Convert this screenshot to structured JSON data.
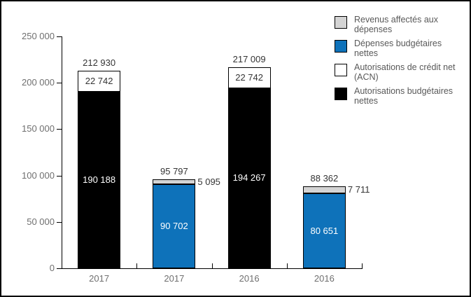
{
  "chart_data": {
    "type": "bar",
    "stacked": true,
    "title": "",
    "grid": false,
    "y_axis": {
      "min": 0,
      "max": 250000,
      "step": 50000,
      "tick_labels": [
        "0",
        "50 000",
        "100 000",
        "150 000",
        "200 000",
        "250 000"
      ]
    },
    "categories": [
      "2017",
      "2017",
      "2016",
      "2016"
    ],
    "series": [
      {
        "name": "Revenus affectés aux dépenses",
        "color": "#D4D4D4",
        "values": [
          0,
          5095,
          0,
          7711
        ]
      },
      {
        "name": "Dépenses budgétaires nettes",
        "color": "#0E72BA",
        "values": [
          0,
          90702,
          0,
          80651
        ]
      },
      {
        "name": "Autorisations de crédit net (ACN)",
        "color": "#FFFFFF",
        "values": [
          22742,
          0,
          22742,
          0
        ]
      },
      {
        "name": "Autorisations budgétaires nettes",
        "color": "#000000",
        "values": [
          190188,
          0,
          194267,
          0
        ]
      }
    ],
    "bars": [
      {
        "category": "2017",
        "total": 212930,
        "total_label": "212 930",
        "segments": [
          {
            "series": "Autorisations budgétaires nettes",
            "value": 190188,
            "label": "190 188",
            "color": "#000000",
            "label_color": "#FFFFFF",
            "label_placement": "inside"
          },
          {
            "series": "Autorisations de crédit net (ACN)",
            "value": 22742,
            "label": "22 742",
            "color": "#FFFFFF",
            "label_color": "#343434",
            "label_placement": "inside"
          }
        ]
      },
      {
        "category": "2017",
        "total": 95797,
        "total_label": "95 797",
        "segments": [
          {
            "series": "Dépenses budgétaires nettes",
            "value": 90702,
            "label": "90 702",
            "color": "#0E72BA",
            "label_color": "#FFFFFF",
            "label_placement": "inside"
          },
          {
            "series": "Revenus affectés aux dépenses",
            "value": 5095,
            "label": "5 095",
            "color": "#D4D4D4",
            "label_color": "#343434",
            "label_placement": "right"
          }
        ]
      },
      {
        "category": "2016",
        "total": 217009,
        "total_label": "217 009",
        "segments": [
          {
            "series": "Autorisations budgétaires nettes",
            "value": 194267,
            "label": "194 267",
            "color": "#000000",
            "label_color": "#FFFFFF",
            "label_placement": "inside"
          },
          {
            "series": "Autorisations de crédit net (ACN)",
            "value": 22742,
            "label": "22 742",
            "color": "#FFFFFF",
            "label_color": "#343434",
            "label_placement": "inside"
          }
        ]
      },
      {
        "category": "2016",
        "total": 88362,
        "total_label": "88 362",
        "segments": [
          {
            "series": "Dépenses budgétaires nettes",
            "value": 80651,
            "label": "80 651",
            "color": "#0E72BA",
            "label_color": "#FFFFFF",
            "label_placement": "inside"
          },
          {
            "series": "Revenus affectés aux dépenses",
            "value": 7711,
            "label": "7 711",
            "color": "#D4D4D4",
            "label_color": "#343434",
            "label_placement": "right"
          }
        ]
      }
    ],
    "legend": {
      "position": "top-right",
      "items": [
        {
          "label": "Revenus affectés aux dépenses",
          "color": "#D4D4D4"
        },
        {
          "label": "Dépenses budgétaires nettes",
          "color": "#0E72BA"
        },
        {
          "label": "Autorisations de crédit net (ACN)",
          "color": "#FFFFFF"
        },
        {
          "label": "Autorisations budgétaires nettes",
          "color": "#000000"
        }
      ]
    }
  }
}
